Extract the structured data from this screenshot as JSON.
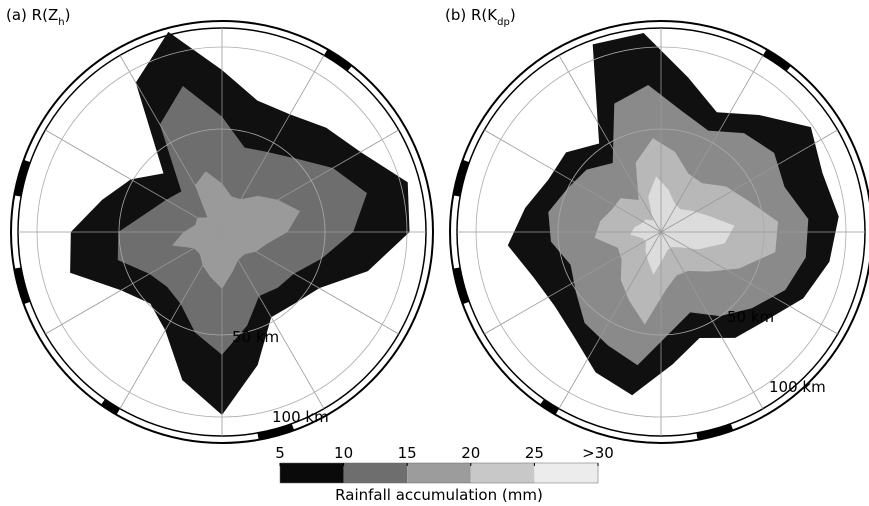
{
  "panels": [
    {
      "title": {
        "prefix": "(a) R(Z",
        "sub": "h",
        "suffix": ")"
      },
      "ring_labels": [
        "50 km",
        "100 km"
      ]
    },
    {
      "title": {
        "prefix": "(b) R(K",
        "sub": "dp",
        "suffix": ")"
      },
      "ring_labels": [
        "50 km",
        "100 km"
      ]
    }
  ],
  "colorbar": {
    "ticks": [
      5,
      10,
      15,
      20,
      25,
      {
        "value": 30,
        "label": ">30"
      }
    ],
    "colors": [
      "#0a0a0a",
      "#6e6e6e",
      "#9c9c9c",
      "#c8c8c8",
      "#ececec"
    ],
    "lim": [
      5,
      30
    ],
    "label": "Rainfall accumulation (mm)"
  }
}
